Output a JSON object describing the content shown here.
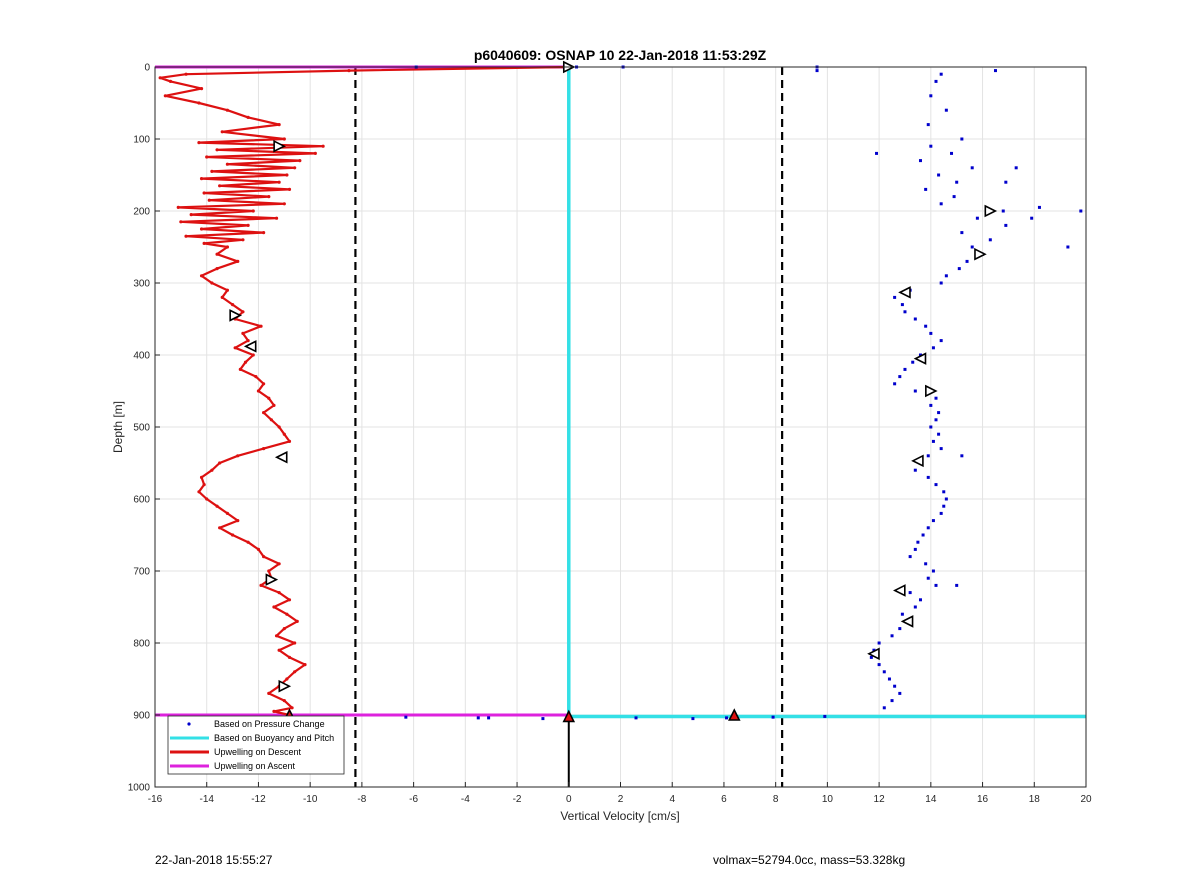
{
  "chart_data": {
    "type": "scatter",
    "title": "p6040609: OSNAP 10 22-Jan-2018 11:53:29Z",
    "xlabel": "Vertical Velocity [cm/s]",
    "ylabel": "Depth [m]",
    "xlim": [
      -16,
      20
    ],
    "ylim": [
      0,
      1000
    ],
    "y_reversed": true,
    "grid": true,
    "xticks": [
      -16,
      -14,
      -12,
      -10,
      -8,
      -6,
      -4,
      -2,
      0,
      2,
      4,
      6,
      8,
      10,
      12,
      14,
      16,
      18,
      20
    ],
    "yticks": [
      0,
      100,
      200,
      300,
      400,
      500,
      600,
      700,
      800,
      900,
      1000
    ],
    "legend_position": "bottom-left",
    "legend": [
      {
        "name": "Based on Pressure Change",
        "color": "#0000cc",
        "style": "dot"
      },
      {
        "name": "Based on Buoyancy and Pitch",
        "color": "#33e0e6",
        "style": "line"
      },
      {
        "name": "Upwelling on Descent",
        "color": "#dd1111",
        "style": "line"
      },
      {
        "name": "Upwelling on Ascent",
        "color": "#dd22dd",
        "style": "line"
      }
    ],
    "threshold_lines_x": [
      -8.25,
      8.25
    ],
    "pressure_change_descent": {
      "depth": [
        10,
        20,
        40,
        60,
        80,
        100,
        110,
        120,
        130,
        140,
        150,
        160,
        170,
        180,
        190,
        200,
        210,
        220,
        230,
        240,
        250,
        260,
        270,
        280,
        290,
        300,
        310,
        320,
        330,
        340,
        350,
        360,
        370,
        380,
        390,
        400,
        410,
        420,
        430,
        440,
        450,
        460,
        470,
        480,
        490,
        500,
        510,
        520,
        530,
        540,
        550,
        560,
        570,
        580,
        590,
        600,
        610,
        620,
        630,
        640,
        650,
        660,
        670,
        680,
        690,
        700,
        710,
        720,
        730,
        740,
        750,
        760,
        770,
        780,
        790,
        800,
        810,
        820,
        830,
        840,
        850,
        860,
        870,
        880,
        890
      ],
      "velocity": [
        14.4,
        14.2,
        14.0,
        14.6,
        13.9,
        15.2,
        14.0,
        14.8,
        13.6,
        15.6,
        14.3,
        15.0,
        13.8,
        14.9,
        14.4,
        16.8,
        15.8,
        16.9,
        15.2,
        16.3,
        15.6,
        16.0,
        15.4,
        15.1,
        14.6,
        14.4,
        13.2,
        12.6,
        12.9,
        13.0,
        13.4,
        13.8,
        14.0,
        14.4,
        14.1,
        13.6,
        13.3,
        13.0,
        12.8,
        12.6,
        13.4,
        14.2,
        14.0,
        14.3,
        14.2,
        14.0,
        14.3,
        14.1,
        14.4,
        13.9,
        13.6,
        13.4,
        13.9,
        14.2,
        14.5,
        14.6,
        14.5,
        14.4,
        14.1,
        13.9,
        13.7,
        13.5,
        13.4,
        13.2,
        13.8,
        14.1,
        13.9,
        14.2,
        13.2,
        13.6,
        13.4,
        12.9,
        13.2,
        12.8,
        12.5,
        12.0,
        11.8,
        11.7,
        12.0,
        12.2,
        12.4,
        12.6,
        12.8,
        12.5,
        12.2
      ]
    },
    "pressure_change_scatter": {
      "depth": [
        5,
        5,
        120,
        140,
        160,
        195,
        200,
        210,
        250,
        540,
        720
      ],
      "velocity": [
        9.6,
        16.5,
        11.9,
        17.3,
        16.9,
        18.2,
        19.8,
        17.9,
        19.3,
        15.2,
        15.0
      ]
    },
    "pressure_change_surface": {
      "depth": [
        0,
        0,
        0,
        0
      ],
      "velocity": [
        -5.9,
        0.3,
        2.1,
        9.6
      ]
    },
    "pressure_change_bottom": {
      "depth": [
        903,
        904,
        904,
        905,
        904,
        905,
        904,
        903,
        902
      ],
      "velocity": [
        -6.3,
        -3.5,
        -3.1,
        -1.0,
        2.6,
        4.8,
        6.1,
        7.9,
        9.9
      ]
    },
    "upwelling_descent": {
      "depth": [
        0,
        5,
        10,
        15,
        20,
        30,
        40,
        50,
        60,
        70,
        80,
        90,
        100,
        105,
        110,
        115,
        120,
        125,
        130,
        135,
        140,
        145,
        150,
        155,
        160,
        165,
        170,
        175,
        180,
        185,
        190,
        195,
        200,
        205,
        210,
        215,
        220,
        225,
        230,
        235,
        240,
        245,
        250,
        260,
        270,
        280,
        290,
        300,
        310,
        320,
        330,
        340,
        350,
        360,
        370,
        380,
        390,
        400,
        410,
        420,
        430,
        440,
        450,
        460,
        470,
        480,
        490,
        500,
        510,
        520,
        530,
        540,
        550,
        560,
        570,
        580,
        590,
        600,
        610,
        620,
        630,
        640,
        650,
        660,
        670,
        680,
        690,
        700,
        710,
        720,
        730,
        740,
        750,
        760,
        770,
        780,
        790,
        800,
        810,
        820,
        830,
        840,
        850,
        860,
        870,
        880,
        890,
        895,
        900
      ],
      "velocity": [
        0,
        -8.5,
        -14.8,
        -15.8,
        -15.4,
        -14.2,
        -15.6,
        -14.3,
        -13.2,
        -12.4,
        -11.2,
        -13.4,
        -11.0,
        -14.3,
        -9.5,
        -13.6,
        -9.8,
        -14.0,
        -10.4,
        -13.2,
        -10.6,
        -13.8,
        -10.9,
        -14.2,
        -11.2,
        -13.5,
        -10.8,
        -14.1,
        -11.6,
        -13.9,
        -11.0,
        -15.1,
        -12.2,
        -14.6,
        -11.3,
        -15.0,
        -12.4,
        -14.2,
        -11.8,
        -14.8,
        -12.6,
        -14.1,
        -13.2,
        -13.6,
        -12.8,
        -13.6,
        -14.2,
        -13.8,
        -13.2,
        -13.4,
        -13.0,
        -12.6,
        -12.9,
        -11.9,
        -12.6,
        -12.4,
        -12.9,
        -12.2,
        -12.5,
        -12.7,
        -12.1,
        -11.8,
        -12.0,
        -11.6,
        -11.4,
        -11.8,
        -11.5,
        -11.2,
        -11.0,
        -10.8,
        -11.8,
        -12.8,
        -13.5,
        -13.8,
        -14.2,
        -14.1,
        -14.3,
        -14.0,
        -13.6,
        -13.2,
        -12.8,
        -13.5,
        -13.0,
        -12.4,
        -12.0,
        -11.8,
        -11.2,
        -11.6,
        -11.5,
        -11.9,
        -11.2,
        -10.8,
        -11.4,
        -10.9,
        -10.5,
        -11.0,
        -11.3,
        -10.6,
        -11.2,
        -10.8,
        -10.2,
        -10.6,
        -10.9,
        -11.2,
        -11.6,
        -11.0,
        -10.7,
        -11.4,
        -10.8
      ]
    },
    "upwelling_ascent": {
      "depth": [
        0,
        0,
        900,
        900
      ],
      "velocity": [
        -16,
        0,
        -16,
        0
      ]
    },
    "buoyancy_pitch": {
      "segments": [
        {
          "velocity": [
            0,
            0
          ],
          "depth": [
            0,
            900
          ]
        },
        {
          "velocity": [
            0,
            20
          ],
          "depth": [
            902,
            902
          ]
        }
      ]
    },
    "vertical_bottom_line": {
      "velocity": [
        0,
        0
      ],
      "depth": [
        900,
        1000
      ]
    },
    "triangle_markers": [
      {
        "velocity": 0.0,
        "depth": 0,
        "dir": "right"
      },
      {
        "velocity": -11.2,
        "depth": 110,
        "dir": "right"
      },
      {
        "velocity": -12.9,
        "depth": 345,
        "dir": "right"
      },
      {
        "velocity": -12.3,
        "depth": 388,
        "dir": "left"
      },
      {
        "velocity": -11.1,
        "depth": 542,
        "dir": "left"
      },
      {
        "velocity": -11.5,
        "depth": 712,
        "dir": "right"
      },
      {
        "velocity": -11.0,
        "depth": 860,
        "dir": "right"
      },
      {
        "velocity": -10.8,
        "depth": 900,
        "dir": "up"
      },
      {
        "velocity": 16.3,
        "depth": 200,
        "dir": "right"
      },
      {
        "velocity": 15.9,
        "depth": 260,
        "dir": "right"
      },
      {
        "velocity": 13.0,
        "depth": 313,
        "dir": "left"
      },
      {
        "velocity": 13.6,
        "depth": 405,
        "dir": "left"
      },
      {
        "velocity": 14.0,
        "depth": 450,
        "dir": "right"
      },
      {
        "velocity": 13.5,
        "depth": 547,
        "dir": "left"
      },
      {
        "velocity": 12.8,
        "depth": 727,
        "dir": "left"
      },
      {
        "velocity": 13.1,
        "depth": 770,
        "dir": "left"
      },
      {
        "velocity": 11.8,
        "depth": 815,
        "dir": "left"
      },
      {
        "velocity": 0.0,
        "depth": 902,
        "dir": "up"
      },
      {
        "velocity": 6.4,
        "depth": 900,
        "dir": "up"
      }
    ]
  },
  "footer": {
    "timestamp": "22-Jan-2018 15:55:27",
    "info": "volmax=52794.0cc, mass=53.328kg"
  }
}
